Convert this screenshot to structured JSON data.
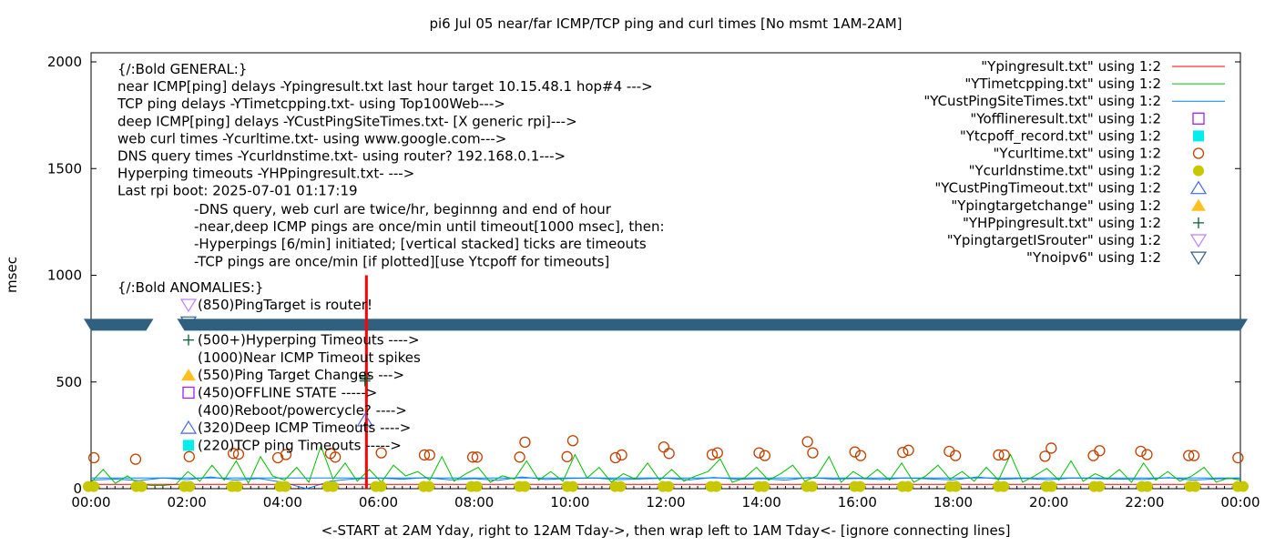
{
  "chart_data": {
    "type": "line",
    "title": "pi6 Jul 05  near/far ICMP/TCP ping and curl times [No msmt 1AM-2AM]",
    "xlabel": "<-START at 2AM Yday, right to 12AM Tday->, then wrap left to 1AM Tday<- [ignore connecting lines]",
    "ylabel": "msec",
    "xlim": [
      0,
      24
    ],
    "ylim": [
      0,
      2000
    ],
    "x_ticks": [
      "00:00",
      "02:00",
      "04:00",
      "06:00",
      "08:00",
      "10:00",
      "12:00",
      "14:00",
      "16:00",
      "18:00",
      "20:00",
      "22:00",
      "00:00"
    ],
    "y_ticks": [
      0,
      500,
      1000,
      1500,
      2000
    ],
    "legend_position": "top-right",
    "colors": {
      "ping": "#ff0000",
      "tcp": "#00c000",
      "custping": "#0080ff",
      "offline": "#a020f0",
      "tcpoff": "#00eeee",
      "curl": "#c04000",
      "dns": "#c8c800",
      "custtimeout": "#4169e1",
      "targetchange": "#ffc020",
      "hp": "#006030",
      "isrouter": "#c080ff",
      "noipv6": "#306080"
    },
    "legend": [
      {
        "label": "\"Ypingresult.txt\" using 1:2",
        "style": "line",
        "color": "#ff0000"
      },
      {
        "label": "\"YTimetcpping.txt\" using 1:2",
        "style": "line",
        "color": "#00c000"
      },
      {
        "label": "\"YCustPingSiteTimes.txt\" using 1:2",
        "style": "line",
        "color": "#0080ff"
      },
      {
        "label": "\"Yofflineresult.txt\" using 1:2",
        "style": "open-square",
        "color": "#a020f0"
      },
      {
        "label": "\"Ytcpoff_record.txt\" using 1:2",
        "style": "filled-square",
        "color": "#00eeee"
      },
      {
        "label": "\"Ycurltime.txt\" using 1:2",
        "style": "open-circle",
        "color": "#c04000"
      },
      {
        "label": "\"Ycurldnstime.txt\" using 1:2",
        "style": "filled-circle",
        "color": "#c8c800"
      },
      {
        "label": "\"YCustPingTimeout.txt\" using 1:2",
        "style": "open-triangle-up",
        "color": "#4169e1"
      },
      {
        "label": "\"Ypingtargetchange\" using 1:2",
        "style": "filled-triangle-up",
        "color": "#ffc020"
      },
      {
        "label": "\"YHPpingresult.txt\" using 1:2",
        "style": "plus",
        "color": "#006030"
      },
      {
        "label": "\"YpingtargetISrouter\" using 1:2",
        "style": "open-triangle-down",
        "color": "#c080ff"
      },
      {
        "label": "\"Ynoipv6\" using 1:2",
        "style": "open-triangle-down",
        "color": "#306080"
      }
    ],
    "general_lines": [
      "{/:Bold GENERAL:}",
      "near ICMP[ping] delays -Ypingresult.txt last hour target 10.15.48.1 hop#4 --->",
      "TCP ping delays -YTimetcpping.txt- using Top100Web--->",
      "deep ICMP[ping] delays -YCustPingSiteTimes.txt- [X generic rpi]--->",
      "web curl times -Ycurltime.txt- using www.google.com--->",
      "DNS query times -Ycurldnstime.txt- using router? 192.168.0.1--->",
      "Hyperping timeouts -YHPpingresult.txt- --->",
      "Last rpi boot: 2025-07-01 01:17:19"
    ],
    "notes": [
      "-DNS query, web curl are twice/hr, beginnng and end of hour",
      "-near,deep ICMP pings are once/min until timeout[1000 msec], then:",
      "  -Hyperpings [6/min] initiated; [vertical stacked] ticks are timeouts",
      "-TCP pings are once/min [if plotted][use Ytcpoff for timeouts]"
    ],
    "anomalies_title": "{/:Bold ANOMALIES:}",
    "anomalies": [
      {
        "text": "(850)PingTarget is router!",
        "marker": "open-triangle-down",
        "color": "#c080ff"
      },
      {
        "text": "",
        "marker": "open-triangle-down",
        "color": "#306080"
      },
      {
        "text": "(500+)Hyperping Timeouts ---->",
        "marker": "plus",
        "color": "#006030"
      },
      {
        "text": "(1000)Near ICMP Timeout spikes",
        "marker": "none",
        "color": ""
      },
      {
        "text": "(550)Ping Target Changes --->",
        "marker": "filled-triangle-up",
        "color": "#ffc020"
      },
      {
        "text": "(450)OFFLINE STATE ----->",
        "marker": "open-square",
        "color": "#a020f0"
      },
      {
        "text": "(400)Reboot/powercycle? ---->",
        "marker": "none",
        "color": ""
      },
      {
        "text": "(320)Deep ICMP Timeouts ---->",
        "marker": "open-triangle-up",
        "color": "#4169e1"
      },
      {
        "text": "(220)TCP ping Timeouts ----->",
        "marker": "filled-square",
        "color": "#00eeee"
      }
    ],
    "series": {
      "ping_baseline": 20,
      "ping_spike": {
        "x": 5.75,
        "y": 1000
      },
      "custping": [
        40,
        45,
        38,
        50,
        42,
        55,
        40,
        48,
        30,
        0,
        35,
        46,
        50,
        44,
        52,
        41,
        47,
        39,
        55,
        43,
        48,
        50,
        42,
        46,
        49,
        41,
        53,
        44,
        47,
        40,
        52,
        45,
        48,
        43,
        50,
        46,
        41,
        55,
        44,
        48,
        42,
        50,
        47,
        45,
        43,
        52,
        40,
        46,
        48
      ],
      "tcp": [
        30,
        90,
        25,
        60,
        20,
        15,
        15,
        20,
        80,
        35,
        110,
        40,
        130,
        25,
        150,
        60,
        40,
        100,
        30,
        200,
        45,
        120,
        35,
        90,
        30,
        110,
        60,
        80,
        40,
        150,
        35,
        70,
        100,
        30,
        60,
        45,
        130,
        40,
        80,
        35,
        160,
        50,
        100,
        30,
        70,
        45,
        120,
        40,
        90,
        35,
        60,
        80,
        140,
        30,
        50,
        100,
        40,
        70,
        110,
        35,
        60,
        150,
        30,
        80,
        45,
        90,
        40,
        120,
        30,
        60,
        110,
        45,
        80,
        35,
        100,
        40,
        160,
        30,
        60,
        95,
        40,
        130,
        35,
        70,
        45,
        90,
        30,
        120,
        40,
        80,
        35,
        60,
        100,
        30,
        50,
        40
      ],
      "curl": [
        [
          0.06,
          145
        ],
        [
          0.93,
          138
        ],
        [
          2.05,
          150
        ],
        [
          2.97,
          165
        ],
        [
          3.08,
          162
        ],
        [
          3.9,
          145
        ],
        [
          4.07,
          160
        ],
        [
          5.0,
          165
        ],
        [
          5.1,
          148
        ],
        [
          6.06,
          168
        ],
        [
          6.96,
          158
        ],
        [
          7.07,
          158
        ],
        [
          7.97,
          148
        ],
        [
          8.06,
          148
        ],
        [
          8.95,
          148
        ],
        [
          9.06,
          218
        ],
        [
          9.94,
          150
        ],
        [
          10.06,
          225
        ],
        [
          10.95,
          145
        ],
        [
          11.08,
          158
        ],
        [
          11.96,
          195
        ],
        [
          12.07,
          165
        ],
        [
          12.97,
          160
        ],
        [
          13.08,
          168
        ],
        [
          13.95,
          168
        ],
        [
          14.07,
          155
        ],
        [
          14.96,
          220
        ],
        [
          15.07,
          168
        ],
        [
          15.95,
          172
        ],
        [
          16.07,
          155
        ],
        [
          16.95,
          170
        ],
        [
          17.07,
          180
        ],
        [
          17.92,
          175
        ],
        [
          18.05,
          155
        ],
        [
          18.95,
          158
        ],
        [
          19.07,
          158
        ],
        [
          19.92,
          152
        ],
        [
          20.05,
          190
        ],
        [
          20.93,
          155
        ],
        [
          21.06,
          178
        ],
        [
          21.92,
          175
        ],
        [
          22.05,
          160
        ],
        [
          22.92,
          155
        ],
        [
          23.03,
          155
        ],
        [
          23.95,
          145
        ]
      ],
      "dns_hours": [
        0,
        1,
        2,
        3,
        4,
        5,
        6,
        7,
        8,
        9,
        10,
        11,
        12,
        13,
        14,
        15,
        16,
        17,
        18,
        19,
        20,
        21,
        22,
        23,
        24
      ],
      "dns_value": 10,
      "hp_timeouts": [
        [
          5.72,
          505
        ],
        [
          5.72,
          515
        ],
        [
          5.72,
          525
        ]
      ],
      "cust_timeouts": [
        [
          5.72,
          320
        ]
      ],
      "noipv6": {
        "y": 770,
        "gaps": [
          [
            1.15,
            1.95
          ]
        ]
      }
    }
  }
}
